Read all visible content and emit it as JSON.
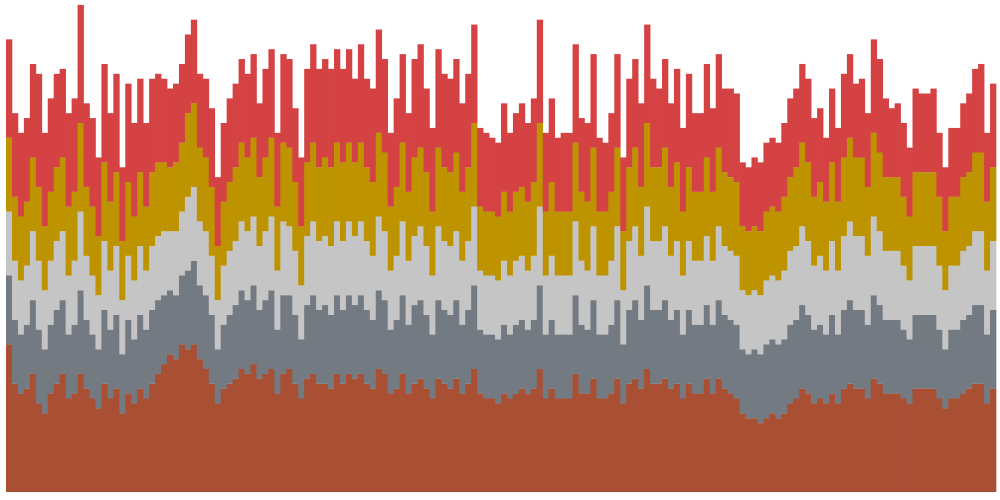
{
  "chart_data": {
    "type": "bar",
    "stacked": true,
    "title": "",
    "xlabel": "",
    "ylabel": "",
    "ylim": [
      0,
      1
    ],
    "grid": false,
    "legend": "none",
    "colors": [
      "#a94f33",
      "#737a82",
      "#c5c5c5",
      "#bd9400",
      "#d54243"
    ],
    "bar_count": 166,
    "totals": [
      0.92,
      0.77,
      0.73,
      0.76,
      0.87,
      0.85,
      0.73,
      0.8,
      0.85,
      0.86,
      0.77,
      0.8,
      0.99,
      0.79,
      0.76,
      0.68,
      0.87,
      0.77,
      0.85,
      0.66,
      0.83,
      0.75,
      0.84,
      0.75,
      0.84,
      0.85,
      0.84,
      0.82,
      0.83,
      0.87,
      0.93,
      0.96,
      0.85,
      0.84,
      0.78,
      0.64,
      0.75,
      0.8,
      0.83,
      0.88,
      0.85,
      0.89,
      0.79,
      0.86,
      0.9,
      0.73,
      0.89,
      0.88,
      0.78,
      0.68,
      0.86,
      0.91,
      0.86,
      0.88,
      0.86,
      0.9,
      0.86,
      0.9,
      0.84,
      0.91,
      0.84,
      0.82,
      0.94,
      0.88,
      0.73,
      0.8,
      0.89,
      0.77,
      0.88,
      0.91,
      0.82,
      0.74,
      0.9,
      0.85,
      0.84,
      0.88,
      0.79,
      0.85,
      0.95,
      0.74,
      0.73,
      0.72,
      0.71,
      0.79,
      0.73,
      0.77,
      0.79,
      0.75,
      0.8,
      0.96,
      0.73,
      0.8,
      0.72,
      0.73,
      0.73,
      0.91,
      0.76,
      0.75,
      0.89,
      0.72,
      0.71,
      0.77,
      0.89,
      0.68,
      0.84,
      0.88,
      0.79,
      0.95,
      0.84,
      0.82,
      0.88,
      0.79,
      0.86,
      0.74,
      0.85,
      0.77,
      0.77,
      0.87,
      0.78,
      0.89,
      0.82,
      0.82,
      0.81,
      0.67,
      0.66,
      0.68,
      0.67,
      0.71,
      0.72,
      0.71,
      0.75,
      0.8,
      0.82,
      0.87,
      0.84,
      0.76,
      0.78,
      0.72,
      0.82,
      0.74,
      0.85,
      0.89,
      0.83,
      0.84,
      0.77,
      0.92,
      0.88,
      0.8,
      0.78,
      0.79,
      0.75,
      0.7,
      0.82,
      0.81,
      0.81,
      0.82,
      0.73,
      0.66,
      0.74,
      0.74,
      0.79,
      0.81,
      0.86,
      0.87,
      0.73,
      0.83,
      0.79,
      0.84
    ],
    "series": [
      {
        "values": [
          0.3,
          0.22,
          0.2,
          0.21,
          0.24,
          0.18,
          0.16,
          0.2,
          0.22,
          0.24,
          0.19,
          0.2,
          0.24,
          0.21,
          0.19,
          0.17,
          0.22,
          0.19,
          0.21,
          0.16,
          0.2,
          0.18,
          0.21,
          0.19,
          0.22,
          0.24,
          0.26,
          0.28,
          0.27,
          0.3,
          0.29,
          0.3,
          0.27,
          0.25,
          0.22,
          0.18,
          0.21,
          0.22,
          0.23,
          0.25,
          0.24,
          0.26,
          0.23,
          0.24,
          0.25,
          0.2,
          0.24,
          0.25,
          0.22,
          0.19,
          0.23,
          0.24,
          0.22,
          0.22,
          0.21,
          0.24,
          0.22,
          0.24,
          0.23,
          0.24,
          0.22,
          0.21,
          0.25,
          0.24,
          0.2,
          0.21,
          0.24,
          0.2,
          0.22,
          0.23,
          0.21,
          0.19,
          0.23,
          0.22,
          0.21,
          0.23,
          0.2,
          0.22,
          0.25,
          0.2,
          0.19,
          0.19,
          0.18,
          0.2,
          0.19,
          0.2,
          0.21,
          0.2,
          0.21,
          0.25,
          0.19,
          0.21,
          0.19,
          0.19,
          0.19,
          0.24,
          0.2,
          0.2,
          0.23,
          0.19,
          0.19,
          0.2,
          0.23,
          0.18,
          0.22,
          0.23,
          0.21,
          0.25,
          0.22,
          0.22,
          0.23,
          0.21,
          0.22,
          0.19,
          0.22,
          0.2,
          0.2,
          0.23,
          0.2,
          0.23,
          0.21,
          0.2,
          0.19,
          0.16,
          0.15,
          0.15,
          0.14,
          0.15,
          0.16,
          0.15,
          0.16,
          0.18,
          0.19,
          0.21,
          0.2,
          0.18,
          0.19,
          0.18,
          0.2,
          0.18,
          0.21,
          0.22,
          0.21,
          0.21,
          0.19,
          0.23,
          0.22,
          0.2,
          0.2,
          0.2,
          0.19,
          0.18,
          0.21,
          0.21,
          0.21,
          0.21,
          0.19,
          0.17,
          0.19,
          0.19,
          0.2,
          0.21,
          0.22,
          0.22,
          0.18,
          0.21,
          0.2,
          0.2
        ]
      },
      {
        "values": [
          0.14,
          0.13,
          0.12,
          0.13,
          0.15,
          0.15,
          0.13,
          0.14,
          0.15,
          0.15,
          0.13,
          0.14,
          0.17,
          0.14,
          0.13,
          0.12,
          0.15,
          0.14,
          0.15,
          0.12,
          0.15,
          0.13,
          0.15,
          0.14,
          0.15,
          0.15,
          0.14,
          0.13,
          0.13,
          0.14,
          0.16,
          0.17,
          0.15,
          0.15,
          0.14,
          0.11,
          0.13,
          0.14,
          0.15,
          0.16,
          0.15,
          0.16,
          0.14,
          0.15,
          0.16,
          0.13,
          0.16,
          0.15,
          0.14,
          0.12,
          0.15,
          0.16,
          0.15,
          0.16,
          0.15,
          0.16,
          0.15,
          0.16,
          0.15,
          0.16,
          0.15,
          0.14,
          0.16,
          0.15,
          0.13,
          0.14,
          0.16,
          0.14,
          0.16,
          0.16,
          0.15,
          0.13,
          0.16,
          0.15,
          0.15,
          0.16,
          0.14,
          0.15,
          0.17,
          0.13,
          0.13,
          0.13,
          0.13,
          0.14,
          0.13,
          0.14,
          0.14,
          0.13,
          0.14,
          0.17,
          0.13,
          0.14,
          0.13,
          0.13,
          0.13,
          0.16,
          0.14,
          0.13,
          0.16,
          0.13,
          0.13,
          0.14,
          0.16,
          0.12,
          0.15,
          0.16,
          0.14,
          0.17,
          0.15,
          0.15,
          0.16,
          0.14,
          0.15,
          0.13,
          0.15,
          0.14,
          0.14,
          0.15,
          0.14,
          0.16,
          0.15,
          0.15,
          0.15,
          0.13,
          0.13,
          0.14,
          0.14,
          0.15,
          0.15,
          0.15,
          0.15,
          0.16,
          0.16,
          0.17,
          0.16,
          0.15,
          0.15,
          0.14,
          0.16,
          0.14,
          0.16,
          0.17,
          0.16,
          0.16,
          0.15,
          0.17,
          0.16,
          0.15,
          0.15,
          0.15,
          0.14,
          0.13,
          0.15,
          0.15,
          0.15,
          0.15,
          0.14,
          0.12,
          0.14,
          0.14,
          0.15,
          0.15,
          0.16,
          0.16,
          0.14,
          0.16,
          0.15,
          0.16
        ]
      },
      {
        "values": [
          0.13,
          0.12,
          0.11,
          0.12,
          0.14,
          0.14,
          0.12,
          0.13,
          0.14,
          0.14,
          0.12,
          0.13,
          0.16,
          0.13,
          0.12,
          0.11,
          0.14,
          0.12,
          0.14,
          0.11,
          0.13,
          0.12,
          0.14,
          0.12,
          0.13,
          0.13,
          0.13,
          0.12,
          0.13,
          0.13,
          0.15,
          0.15,
          0.13,
          0.13,
          0.12,
          0.1,
          0.12,
          0.13,
          0.13,
          0.14,
          0.14,
          0.14,
          0.13,
          0.14,
          0.15,
          0.12,
          0.15,
          0.14,
          0.13,
          0.11,
          0.14,
          0.15,
          0.14,
          0.14,
          0.14,
          0.15,
          0.14,
          0.15,
          0.14,
          0.15,
          0.14,
          0.13,
          0.15,
          0.14,
          0.12,
          0.13,
          0.15,
          0.13,
          0.14,
          0.15,
          0.14,
          0.12,
          0.15,
          0.14,
          0.14,
          0.14,
          0.13,
          0.14,
          0.16,
          0.12,
          0.12,
          0.12,
          0.12,
          0.13,
          0.12,
          0.13,
          0.13,
          0.12,
          0.13,
          0.16,
          0.12,
          0.13,
          0.12,
          0.12,
          0.12,
          0.15,
          0.13,
          0.12,
          0.15,
          0.12,
          0.12,
          0.13,
          0.15,
          0.11,
          0.14,
          0.15,
          0.13,
          0.16,
          0.14,
          0.14,
          0.15,
          0.13,
          0.14,
          0.12,
          0.14,
          0.13,
          0.13,
          0.14,
          0.13,
          0.15,
          0.14,
          0.14,
          0.14,
          0.12,
          0.12,
          0.12,
          0.12,
          0.13,
          0.13,
          0.13,
          0.14,
          0.15,
          0.15,
          0.16,
          0.15,
          0.13,
          0.14,
          0.13,
          0.15,
          0.13,
          0.15,
          0.16,
          0.15,
          0.15,
          0.14,
          0.16,
          0.15,
          0.14,
          0.14,
          0.14,
          0.13,
          0.12,
          0.14,
          0.14,
          0.14,
          0.14,
          0.13,
          0.12,
          0.13,
          0.13,
          0.14,
          0.14,
          0.15,
          0.15,
          0.13,
          0.14,
          0.14,
          0.15
        ]
      },
      {
        "values": [
          0.15,
          0.13,
          0.13,
          0.13,
          0.15,
          0.15,
          0.13,
          0.14,
          0.15,
          0.15,
          0.14,
          0.14,
          0.18,
          0.14,
          0.14,
          0.12,
          0.16,
          0.14,
          0.15,
          0.12,
          0.15,
          0.13,
          0.15,
          0.13,
          0.15,
          0.15,
          0.14,
          0.13,
          0.14,
          0.14,
          0.17,
          0.17,
          0.15,
          0.15,
          0.14,
          0.11,
          0.13,
          0.14,
          0.15,
          0.16,
          0.15,
          0.16,
          0.14,
          0.15,
          0.16,
          0.13,
          0.16,
          0.16,
          0.14,
          0.12,
          0.15,
          0.16,
          0.15,
          0.16,
          0.16,
          0.16,
          0.16,
          0.16,
          0.15,
          0.16,
          0.15,
          0.15,
          0.17,
          0.16,
          0.13,
          0.14,
          0.16,
          0.14,
          0.16,
          0.16,
          0.15,
          0.13,
          0.16,
          0.15,
          0.15,
          0.16,
          0.14,
          0.15,
          0.17,
          0.13,
          0.13,
          0.13,
          0.13,
          0.14,
          0.13,
          0.14,
          0.14,
          0.14,
          0.15,
          0.17,
          0.13,
          0.15,
          0.13,
          0.13,
          0.13,
          0.16,
          0.14,
          0.14,
          0.16,
          0.13,
          0.13,
          0.14,
          0.16,
          0.12,
          0.15,
          0.16,
          0.14,
          0.17,
          0.15,
          0.15,
          0.16,
          0.14,
          0.16,
          0.13,
          0.15,
          0.14,
          0.14,
          0.16,
          0.14,
          0.16,
          0.15,
          0.15,
          0.15,
          0.13,
          0.13,
          0.13,
          0.13,
          0.14,
          0.14,
          0.14,
          0.15,
          0.15,
          0.16,
          0.17,
          0.16,
          0.14,
          0.15,
          0.14,
          0.16,
          0.14,
          0.16,
          0.17,
          0.16,
          0.16,
          0.14,
          0.17,
          0.16,
          0.15,
          0.15,
          0.15,
          0.14,
          0.13,
          0.15,
          0.15,
          0.15,
          0.15,
          0.14,
          0.12,
          0.14,
          0.14,
          0.15,
          0.15,
          0.16,
          0.16,
          0.14,
          0.15,
          0.15,
          0.16
        ]
      },
      {
        "values": [
          0.2,
          0.17,
          0.17,
          0.17,
          0.19,
          0.23,
          0.19,
          0.19,
          0.19,
          0.18,
          0.19,
          0.19,
          0.24,
          0.17,
          0.18,
          0.16,
          0.2,
          0.18,
          0.2,
          0.15,
          0.2,
          0.19,
          0.19,
          0.17,
          0.19,
          0.18,
          0.17,
          0.16,
          0.16,
          0.16,
          0.16,
          0.17,
          0.15,
          0.16,
          0.16,
          0.14,
          0.16,
          0.17,
          0.17,
          0.17,
          0.17,
          0.17,
          0.15,
          0.18,
          0.18,
          0.15,
          0.18,
          0.18,
          0.15,
          0.14,
          0.19,
          0.2,
          0.2,
          0.2,
          0.2,
          0.19,
          0.19,
          0.19,
          0.17,
          0.2,
          0.18,
          0.19,
          0.21,
          0.19,
          0.15,
          0.18,
          0.18,
          0.16,
          0.2,
          0.21,
          0.17,
          0.17,
          0.2,
          0.19,
          0.19,
          0.19,
          0.18,
          0.19,
          0.2,
          0.16,
          0.16,
          0.15,
          0.15,
          0.18,
          0.16,
          0.16,
          0.17,
          0.16,
          0.17,
          0.21,
          0.16,
          0.17,
          0.15,
          0.16,
          0.16,
          0.2,
          0.15,
          0.16,
          0.19,
          0.15,
          0.14,
          0.16,
          0.19,
          0.15,
          0.18,
          0.18,
          0.17,
          0.2,
          0.18,
          0.16,
          0.18,
          0.17,
          0.19,
          0.17,
          0.19,
          0.16,
          0.16,
          0.19,
          0.17,
          0.19,
          0.17,
          0.18,
          0.18,
          0.13,
          0.13,
          0.14,
          0.14,
          0.14,
          0.14,
          0.14,
          0.15,
          0.16,
          0.16,
          0.16,
          0.17,
          0.16,
          0.15,
          0.13,
          0.15,
          0.15,
          0.17,
          0.17,
          0.15,
          0.16,
          0.15,
          0.19,
          0.19,
          0.16,
          0.14,
          0.15,
          0.15,
          0.14,
          0.17,
          0.16,
          0.16,
          0.17,
          0.13,
          0.13,
          0.14,
          0.14,
          0.15,
          0.16,
          0.17,
          0.18,
          0.14,
          0.17,
          0.15,
          0.17
        ]
      }
    ]
  }
}
